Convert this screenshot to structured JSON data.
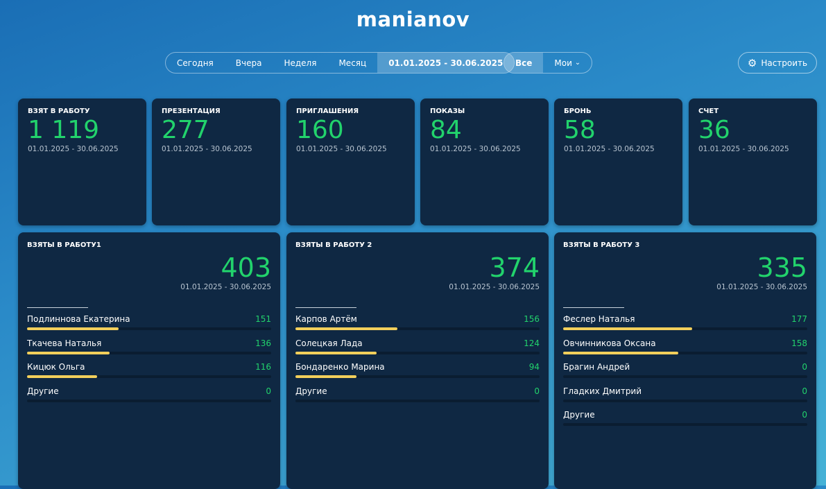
{
  "title": "manianov",
  "periods": [
    "Сегодня",
    "Вчера",
    "Неделя",
    "Месяц",
    "01.01.2025 - 30.06.2025"
  ],
  "active_period": 4,
  "scope": {
    "all": "Все",
    "mine": "Мои"
  },
  "settings_label": "Настроить",
  "colors": {
    "accent": "#22d36c",
    "bar": "#f2cf5b",
    "card": "#0f2843"
  },
  "kpis": [
    {
      "label": "ВЗЯТ В РАБОТУ",
      "value": "1 119",
      "period": "01.01.2025 - 30.06.2025"
    },
    {
      "label": "ПРЕЗЕНТАЦИЯ",
      "value": "277",
      "period": "01.01.2025 - 30.06.2025"
    },
    {
      "label": "ПРИГЛАШЕНИЯ",
      "value": "160",
      "period": "01.01.2025 - 30.06.2025"
    },
    {
      "label": "ПОКАЗЫ",
      "value": "84",
      "period": "01.01.2025 - 30.06.2025"
    },
    {
      "label": "БРОНЬ",
      "value": "58",
      "period": "01.01.2025 - 30.06.2025"
    },
    {
      "label": "СЧЕТ",
      "value": "36",
      "period": "01.01.2025 - 30.06.2025"
    }
  ],
  "panels": [
    {
      "label": "ВЗЯТЫ В РАБОТУ1",
      "value": "403",
      "period": "01.01.2025 - 30.06.2025",
      "rows": [
        {
          "name": "Подлиннова Екатерина",
          "count": "151",
          "share": 0.375
        },
        {
          "name": "Ткачева Наталья",
          "count": "136",
          "share": 0.337
        },
        {
          "name": "Кицюк Ольга",
          "count": "116",
          "share": 0.288
        },
        {
          "name": "Другие",
          "count": "0",
          "share": 0
        }
      ]
    },
    {
      "label": "ВЗЯТЫ В РАБОТУ 2",
      "value": "374",
      "period": "01.01.2025 - 30.06.2025",
      "rows": [
        {
          "name": "Карпов Артём",
          "count": "156",
          "share": 0.417
        },
        {
          "name": "Солецкая Лада",
          "count": "124",
          "share": 0.332
        },
        {
          "name": "Бондаренко Марина",
          "count": "94",
          "share": 0.251
        },
        {
          "name": "Другие",
          "count": "0",
          "share": 0
        }
      ]
    },
    {
      "label": "ВЗЯТЫ В РАБОТУ 3",
      "value": "335",
      "period": "01.01.2025 - 30.06.2025",
      "rows": [
        {
          "name": "Феслер Наталья",
          "count": "177",
          "share": 0.528
        },
        {
          "name": "Овчинникова Оксана",
          "count": "158",
          "share": 0.472
        },
        {
          "name": "Брагин Андрей",
          "count": "0",
          "share": 0
        },
        {
          "name": "Гладких Дмитрий",
          "count": "0",
          "share": 0
        },
        {
          "name": "Другие",
          "count": "0",
          "share": 0
        }
      ]
    }
  ]
}
